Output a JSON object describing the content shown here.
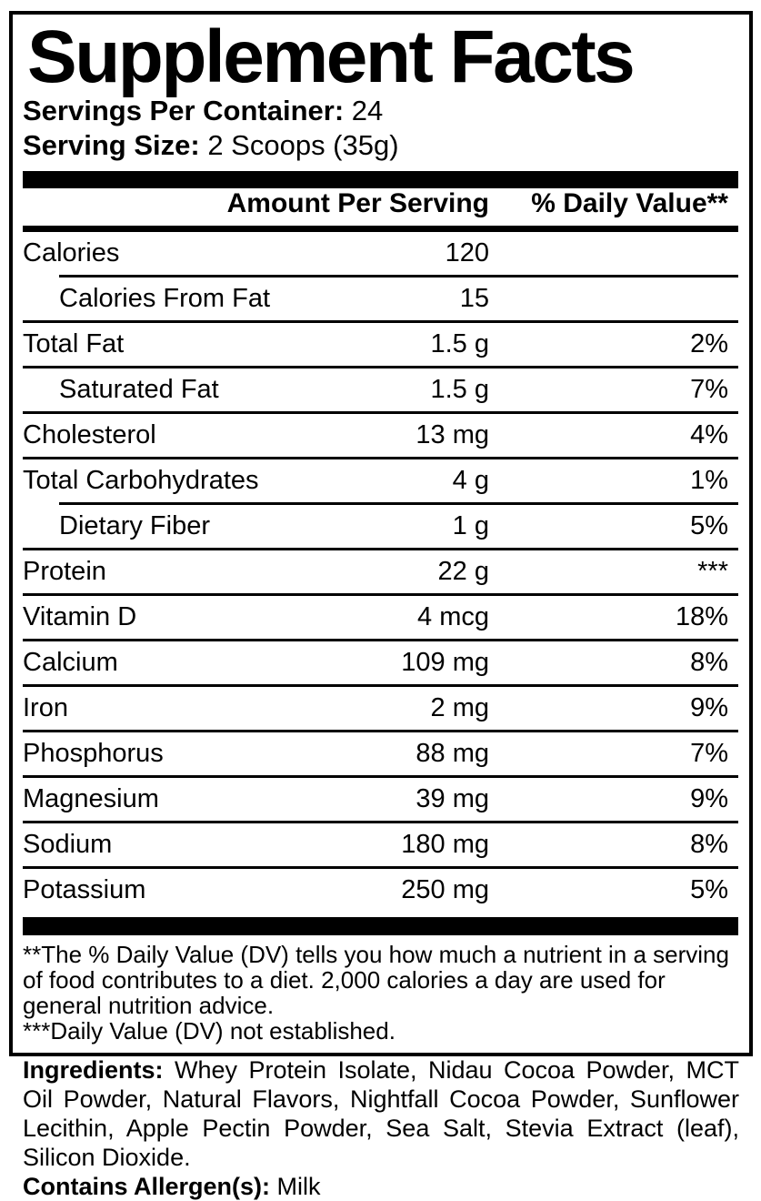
{
  "panel": {
    "title": "Supplement Facts",
    "servings": {
      "label": "Servings Per Container:",
      "value": "24"
    },
    "serving_size": {
      "label": "Serving Size:",
      "value": "2 Scoops (35g)"
    },
    "columns": {
      "amount": "Amount Per Serving",
      "daily_value": "% Daily Value**"
    },
    "rows": [
      {
        "name": "Calories",
        "amount": "120",
        "dv": "",
        "indent": false,
        "sep_above": "none"
      },
      {
        "name": "Calories From Fat",
        "amount": "15",
        "dv": "",
        "indent": true,
        "sep_above": "indented"
      },
      {
        "name": "Total Fat",
        "amount": "1.5 g",
        "dv": "2%",
        "indent": false,
        "sep_above": "full"
      },
      {
        "name": "Saturated Fat",
        "amount": "1.5 g",
        "dv": "7%",
        "indent": true,
        "sep_above": "full"
      },
      {
        "name": "Cholesterol",
        "amount": "13 mg",
        "dv": "4%",
        "indent": false,
        "sep_above": "full"
      },
      {
        "name": "Total Carbohydrates",
        "amount": "4 g",
        "dv": "1%",
        "indent": false,
        "sep_above": "full"
      },
      {
        "name": "Dietary Fiber",
        "amount": "1 g",
        "dv": "5%",
        "indent": true,
        "sep_above": "indented"
      },
      {
        "name": "Protein",
        "amount": "22 g",
        "dv": "***",
        "indent": false,
        "sep_above": "full"
      },
      {
        "name": "Vitamin D",
        "amount": "4 mcg",
        "dv": "18%",
        "indent": false,
        "sep_above": "full"
      },
      {
        "name": "Calcium",
        "amount": "109 mg",
        "dv": "8%",
        "indent": false,
        "sep_above": "full"
      },
      {
        "name": "Iron",
        "amount": "2 mg",
        "dv": "9%",
        "indent": false,
        "sep_above": "full"
      },
      {
        "name": "Phosphorus",
        "amount": "88 mg",
        "dv": "7%",
        "indent": false,
        "sep_above": "full"
      },
      {
        "name": "Magnesium",
        "amount": "39 mg",
        "dv": "9%",
        "indent": false,
        "sep_above": "full"
      },
      {
        "name": "Sodium",
        "amount": "180 mg",
        "dv": "8%",
        "indent": false,
        "sep_above": "full"
      },
      {
        "name": "Potassium",
        "amount": "250 mg",
        "dv": "5%",
        "indent": false,
        "sep_above": "full"
      }
    ],
    "footnotes": [
      "**The % Daily Value (DV) tells you how much a nutrient in a serving of food contributes to a diet. 2,000 calories a day are used for general nutrition advice.",
      "***Daily Value (DV) not established."
    ]
  },
  "ingredients": {
    "label": "Ingredients:",
    "text": "Whey Protein Isolate, Nidau Cocoa Powder, MCT Oil Powder, Natural Flavors, Nightfall Cocoa Powder, Sunflower Lecithin, Apple Pectin Powder, Sea Salt, Stevia Extract (leaf), Silicon Dioxide.",
    "allergen": {
      "label": "Contains Allergen(s):",
      "value": "Milk"
    }
  },
  "colors": {
    "ink": "#000000",
    "background": "#ffffff"
  }
}
